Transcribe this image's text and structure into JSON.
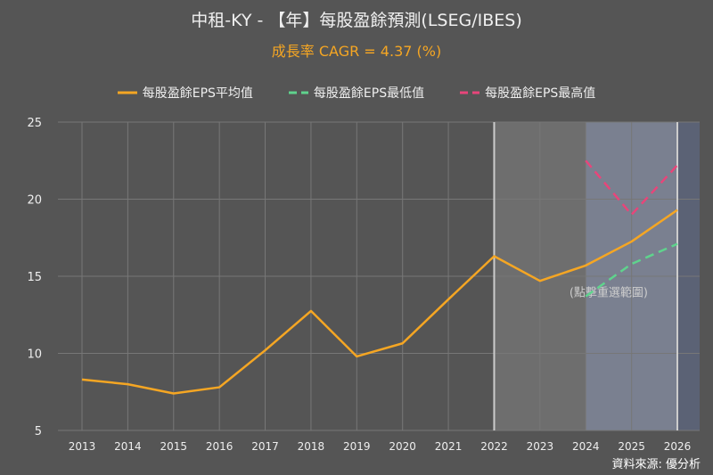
{
  "chart_data": {
    "type": "line",
    "title": "中租-KY - 【年】每股盈餘預測(LSEG/IBES)",
    "subtitle": "成長率 CAGR = 4.37 (%)",
    "x": [
      2013,
      2014,
      2015,
      2016,
      2017,
      2018,
      2019,
      2020,
      2021,
      2022,
      2023,
      2024,
      2025,
      2026
    ],
    "ylim": [
      5,
      25
    ],
    "yticks": [
      5,
      10,
      15,
      20,
      25
    ],
    "grid": true,
    "legend_position": "top",
    "series": [
      {
        "name": "每股盈餘EPS平均值",
        "color": "#f5a623",
        "style": "solid",
        "values": [
          8.3,
          8.0,
          7.4,
          7.8,
          10.2,
          12.75,
          9.8,
          10.65,
          13.5,
          16.3,
          14.7,
          15.7,
          17.25,
          19.3
        ]
      },
      {
        "name": "每股盈餘EPS最低值",
        "color": "#5fd38d",
        "style": "dashed",
        "values": [
          null,
          null,
          null,
          null,
          null,
          null,
          null,
          null,
          null,
          null,
          null,
          13.7,
          15.8,
          17.1
        ]
      },
      {
        "name": "每股盈餘EPS最高值",
        "color": "#e8457a",
        "style": "dashed",
        "values": [
          null,
          null,
          null,
          null,
          null,
          null,
          null,
          null,
          null,
          null,
          null,
          22.5,
          19.0,
          22.2
        ]
      }
    ],
    "annotation": "(點擊重選範圍)",
    "source": "資料來源: 優分析"
  }
}
